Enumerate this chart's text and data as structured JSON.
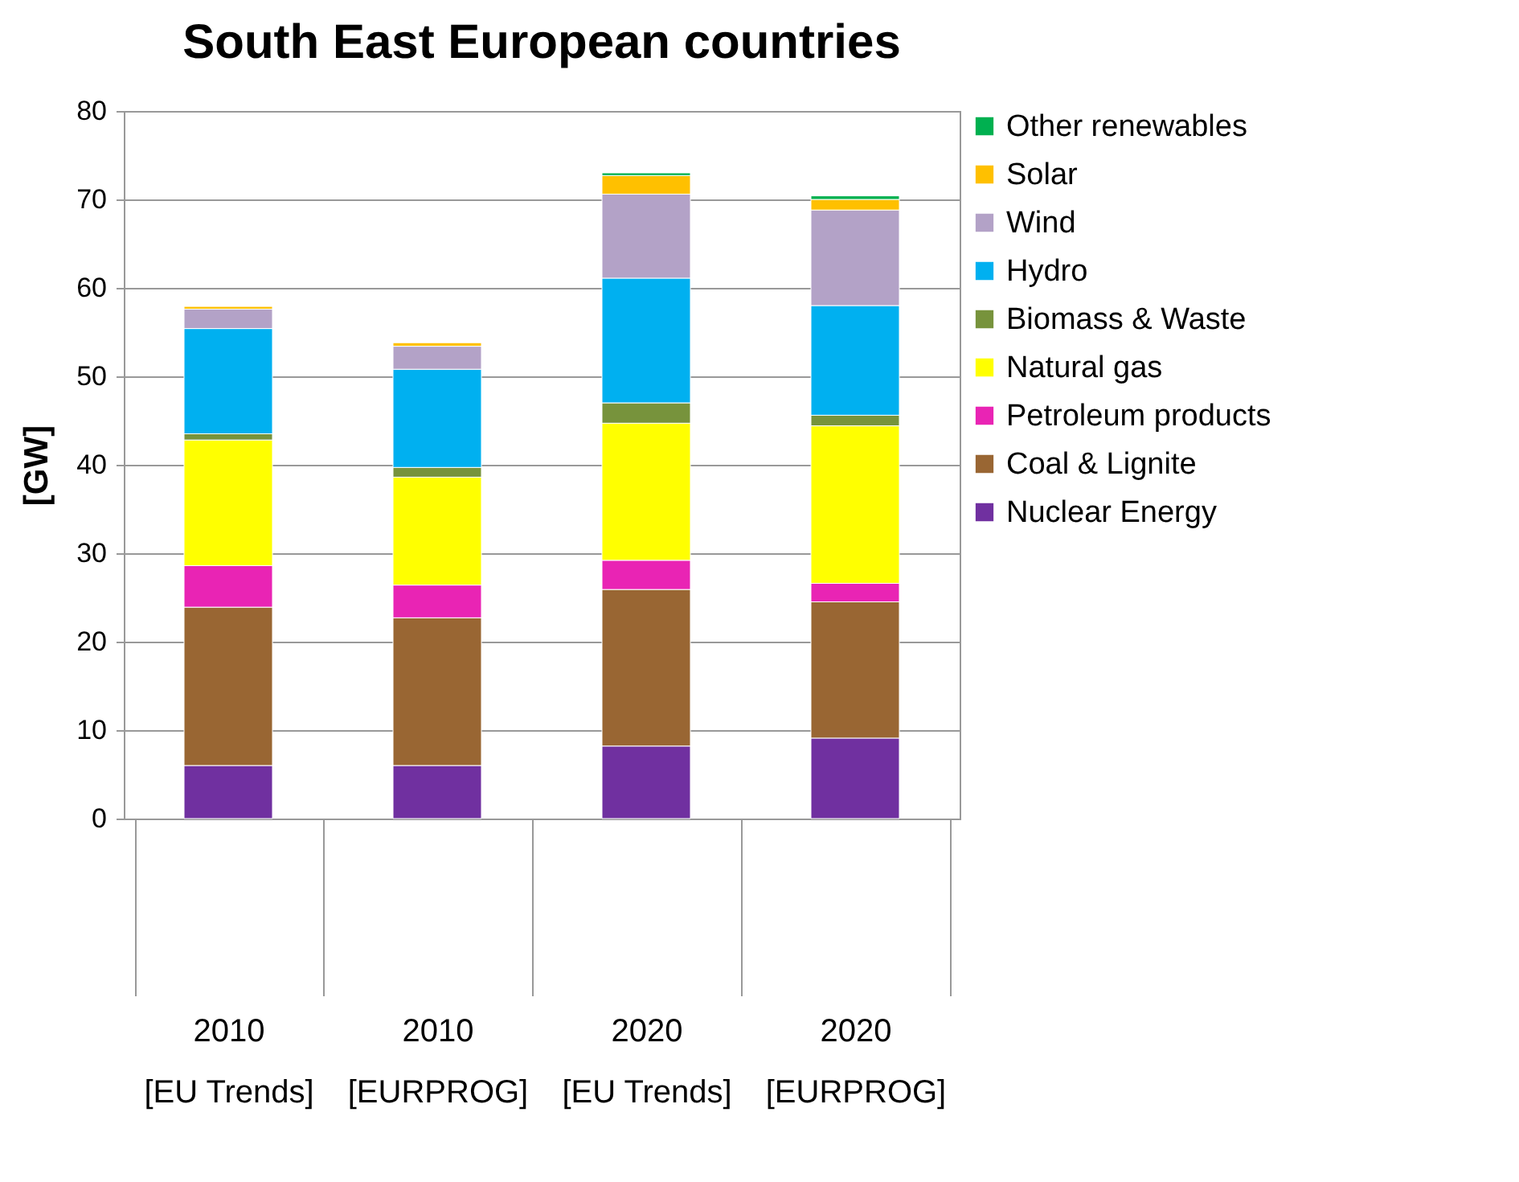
{
  "chart_data": {
    "type": "bar",
    "title": "South East European countries",
    "ylabel": "[GW]",
    "categories": [
      "2010\n[EU Trends]",
      "2010\n[EURPROG]",
      "2020\n[EU Trends]",
      "2020\n[EURPROG]"
    ],
    "stacked": true,
    "ylim": [
      0,
      80
    ],
    "yticks": [
      0,
      10,
      20,
      30,
      40,
      50,
      60,
      70,
      80
    ],
    "grid": "y",
    "legend": "right",
    "series": [
      {
        "name": "Nuclear Energy",
        "color": "#7030a0",
        "values": [
          6,
          6,
          8.2,
          9.1
        ]
      },
      {
        "name": "Coal & Lignite",
        "color": "#996633",
        "values": [
          17.9,
          16.7,
          17.7,
          15.4
        ]
      },
      {
        "name": "Petroleum products",
        "color": "#e924b4",
        "values": [
          4.7,
          3.7,
          3.3,
          2.1
        ]
      },
      {
        "name": "Natural gas",
        "color": "#ffff00",
        "values": [
          14.2,
          12.2,
          15.5,
          17.8
        ]
      },
      {
        "name": "Biomass & Waste",
        "color": "#77933c",
        "values": [
          0.7,
          1.1,
          2.3,
          1.2
        ]
      },
      {
        "name": "Hydro",
        "color": "#00b0f0",
        "values": [
          11.9,
          11.1,
          14.1,
          12.4
        ]
      },
      {
        "name": "Wind",
        "color": "#b3a2c7",
        "values": [
          2.2,
          2.6,
          9.5,
          10.8
        ]
      },
      {
        "name": "Solar",
        "color": "#ffc000",
        "values": [
          0.3,
          0.4,
          2.1,
          1.2
        ]
      },
      {
        "name": "Other renewables",
        "color": "#00b050",
        "values": [
          null,
          null,
          0.3,
          0.4
        ]
      }
    ]
  }
}
